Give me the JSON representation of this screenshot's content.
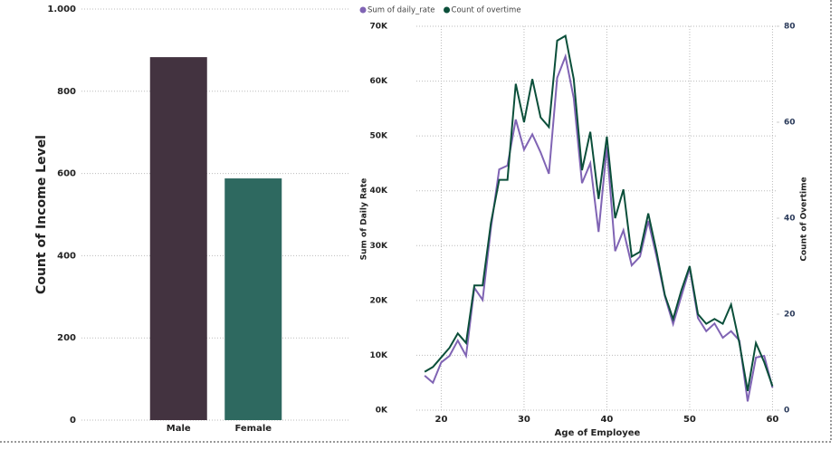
{
  "chart_data": [
    {
      "type": "bar",
      "y_title": "Count of Income Level",
      "categories": [
        "Male",
        "Female"
      ],
      "values": [
        883,
        588
      ],
      "colors": [
        "#433340",
        "#2e6960"
      ],
      "ylim": [
        0,
        1000
      ],
      "yticks": [
        0,
        200,
        400,
        600,
        800,
        {
          "value": 1000,
          "label": "1.000"
        }
      ],
      "grid": true
    },
    {
      "type": "line",
      "x_title": "Age of Employee",
      "y_title": "Sum of Daily Rate",
      "y2_title": "Count of Overtime",
      "x": [
        18,
        19,
        20,
        21,
        22,
        23,
        24,
        25,
        26,
        27,
        28,
        29,
        30,
        31,
        32,
        33,
        34,
        35,
        36,
        37,
        38,
        39,
        40,
        41,
        42,
        43,
        44,
        45,
        46,
        47,
        48,
        49,
        50,
        51,
        52,
        53,
        54,
        55,
        56,
        57,
        58,
        59,
        60
      ],
      "series": [
        {
          "name": "Sum of daily_rate",
          "color": "#8064b4",
          "values": [
            6300,
            5000,
            8700,
            9900,
            12700,
            9900,
            22300,
            20100,
            33200,
            43900,
            44600,
            53000,
            47500,
            50300,
            47000,
            43100,
            60600,
            64500,
            56900,
            41400,
            45000,
            32500,
            48000,
            29000,
            32800,
            26400,
            28000,
            34500,
            28000,
            20800,
            15700,
            20800,
            25900,
            16800,
            14400,
            15800,
            13200,
            14400,
            12700,
            1600,
            9600,
            9900,
            4100
          ]
        },
        {
          "name": "Count of overtime",
          "color": "#0b4f3a",
          "axis": "y2",
          "values": [
            8,
            9,
            11,
            13,
            16,
            14,
            26,
            26,
            39,
            48,
            48,
            68,
            60,
            69,
            61,
            59,
            77,
            78,
            69,
            50,
            58,
            44,
            57,
            40,
            46,
            32,
            33,
            41,
            33,
            24,
            19,
            25,
            30,
            20,
            18,
            19,
            18,
            22,
            14,
            4,
            14,
            10,
            5
          ]
        }
      ],
      "xlim": [
        17,
        60.5
      ],
      "xticks": [
        20,
        30,
        40,
        50,
        60
      ],
      "ylim": [
        0,
        70000
      ],
      "yticks": [
        {
          "value": 0,
          "label": "0K"
        },
        {
          "value": 10000,
          "label": "10K"
        },
        {
          "value": 20000,
          "label": "20K"
        },
        {
          "value": 30000,
          "label": "30K"
        },
        {
          "value": 40000,
          "label": "40K"
        },
        {
          "value": 50000,
          "label": "50K"
        },
        {
          "value": 60000,
          "label": "60K"
        },
        {
          "value": 70000,
          "label": "70K"
        }
      ],
      "y2lim": [
        0,
        80
      ],
      "y2ticks": [
        0,
        20,
        40,
        60,
        80
      ],
      "grid": true
    }
  ]
}
